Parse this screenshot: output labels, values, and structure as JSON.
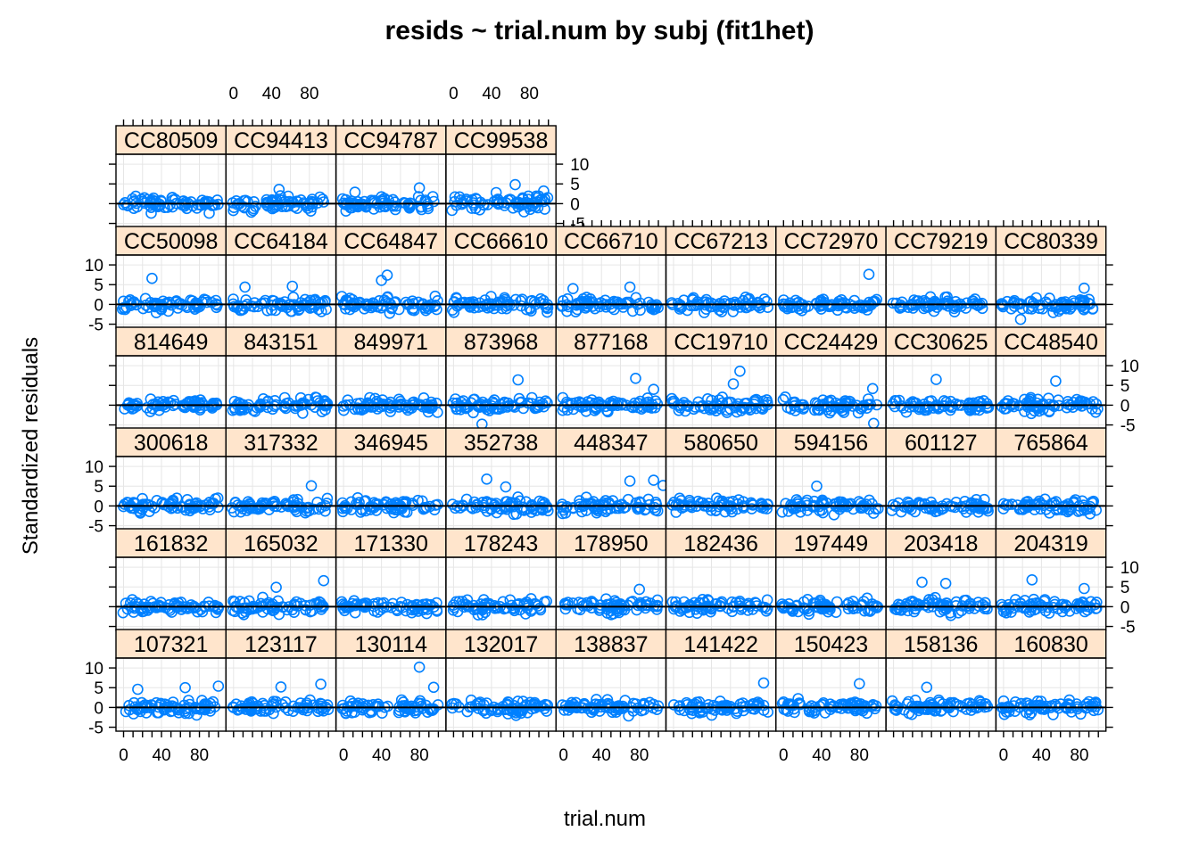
{
  "chart_data": {
    "type": "scatter",
    "title": "resids ~ trial.num by subj (fit1het)",
    "xlabel": "trial.num",
    "ylabel": "Standardized residuals",
    "xlim": [
      -8,
      108
    ],
    "ylim": [
      -6,
      12.5
    ],
    "x_ticks": [
      0,
      40,
      80
    ],
    "y_ticks": [
      -5,
      0,
      5,
      10
    ],
    "grid": true,
    "reference_line_y": 0,
    "colors": {
      "points": "#0080ff",
      "strip": "#ffe5cc",
      "grid": "#e6e6e6",
      "frame": "#000000"
    },
    "rows": [
      [
        "CC80509",
        "CC94413",
        "CC94787",
        "CC99538"
      ],
      [
        "CC50098",
        "CC64184",
        "CC64847",
        "CC66610",
        "CC66710",
        "CC67213",
        "CC72970",
        "CC79219",
        "CC80339"
      ],
      [
        "814649",
        "843151",
        "849971",
        "873968",
        "877168",
        "CC19710",
        "CC24429",
        "CC30625",
        "CC48540"
      ],
      [
        "300618",
        "317332",
        "346945",
        "352738",
        "448347",
        "580650",
        "594156",
        "601127",
        "765864"
      ],
      [
        "161832",
        "165032",
        "171330",
        "178243",
        "178950",
        "182436",
        "197449",
        "203418",
        "204319"
      ],
      [
        "107321",
        "123117",
        "130114",
        "132017",
        "138837",
        "141422",
        "150423",
        "158136",
        "160830"
      ]
    ],
    "outliers": {
      "CC99538": [
        [
          65,
          4.8
        ],
        [
          95,
          3.2
        ],
        [
          45,
          2.8
        ]
      ],
      "CC94787": [
        [
          80,
          4.0
        ],
        [
          12,
          2.9
        ]
      ],
      "CC94413": [
        [
          48,
          3.6
        ]
      ],
      "CC50098": [
        [
          30,
          6.6
        ]
      ],
      "CC64847": [
        [
          40,
          6.1
        ],
        [
          46,
          7.4
        ]
      ],
      "CC72970": [
        [
          90,
          7.6
        ]
      ],
      "CC80339": [
        [
          85,
          4.1
        ],
        [
          18,
          -3.8
        ]
      ],
      "CC64184": [
        [
          12,
          4.4
        ],
        [
          62,
          4.6
        ]
      ],
      "CC66710": [
        [
          10,
          4.0
        ],
        [
          70,
          4.4
        ]
      ],
      "873968": [
        [
          68,
          6.4
        ],
        [
          30,
          -4.8
        ]
      ],
      "877168": [
        [
          76,
          6.8
        ],
        [
          95,
          4.0
        ]
      ],
      "CC19710": [
        [
          70,
          8.6
        ],
        [
          63,
          5.4
        ]
      ],
      "CC24429": [
        [
          95,
          -4.6
        ],
        [
          94,
          4.2
        ]
      ],
      "CC30625": [
        [
          45,
          6.5
        ]
      ],
      "CC48540": [
        [
          55,
          6.1
        ]
      ],
      "352738": [
        [
          35,
          6.8
        ],
        [
          55,
          4.8
        ]
      ],
      "448347": [
        [
          70,
          6.3
        ],
        [
          95,
          6.5
        ],
        [
          105,
          5.2
        ]
      ],
      "317332": [
        [
          82,
          5.1
        ]
      ],
      "594156": [
        [
          35,
          5.0
        ]
      ],
      "178950": [
        [
          80,
          4.4
        ]
      ],
      "165032": [
        [
          45,
          4.9
        ],
        [
          95,
          6.6
        ]
      ],
      "203418": [
        [
          30,
          6.2
        ],
        [
          55,
          5.9
        ]
      ],
      "204319": [
        [
          30,
          6.8
        ],
        [
          85,
          4.6
        ]
      ],
      "130114": [
        [
          80,
          10.2
        ],
        [
          95,
          5.1
        ]
      ],
      "107321": [
        [
          15,
          4.6
        ],
        [
          65,
          5.0
        ],
        [
          100,
          5.4
        ]
      ],
      "123117": [
        [
          50,
          5.2
        ],
        [
          92,
          5.9
        ]
      ],
      "150423": [
        [
          80,
          6.0
        ]
      ],
      "158136": [
        [
          35,
          5.1
        ]
      ],
      "141422": [
        [
          95,
          6.2
        ]
      ]
    }
  }
}
